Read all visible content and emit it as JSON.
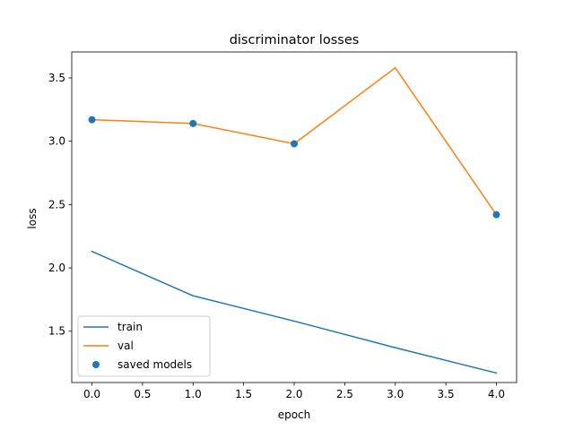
{
  "chart_data": {
    "type": "line",
    "title": "discriminator losses",
    "xlabel": "epoch",
    "ylabel": "loss",
    "xlim": [
      -0.2,
      4.2
    ],
    "ylim": [
      1.095,
      3.705
    ],
    "x_ticks": [
      0.0,
      0.5,
      1.0,
      1.5,
      2.0,
      2.5,
      3.0,
      3.5,
      4.0
    ],
    "x_tick_labels": [
      "0.0",
      "0.5",
      "1.0",
      "1.5",
      "2.0",
      "2.5",
      "3.0",
      "3.5",
      "4.0"
    ],
    "y_ticks": [
      1.5,
      2.0,
      2.5,
      3.0,
      3.5
    ],
    "y_tick_labels": [
      "1.5",
      "2.0",
      "2.5",
      "3.0",
      "3.5"
    ],
    "grid": false,
    "legend_position": "lower-left",
    "x": [
      0,
      1,
      2,
      3,
      4
    ],
    "series": [
      {
        "name": "train",
        "type": "line",
        "color": "#1f77b4",
        "values": [
          2.13,
          1.78,
          1.58,
          1.37,
          1.17
        ]
      },
      {
        "name": "val",
        "type": "line",
        "color": "#ff7f0e",
        "values": [
          3.17,
          3.14,
          2.98,
          3.58,
          2.42
        ]
      },
      {
        "name": "saved models",
        "type": "scatter",
        "color": "#1f77b4",
        "points": [
          {
            "x": 0,
            "y": 3.17
          },
          {
            "x": 1,
            "y": 3.14
          },
          {
            "x": 2,
            "y": 2.98
          },
          {
            "x": 4,
            "y": 2.42
          }
        ]
      }
    ]
  }
}
